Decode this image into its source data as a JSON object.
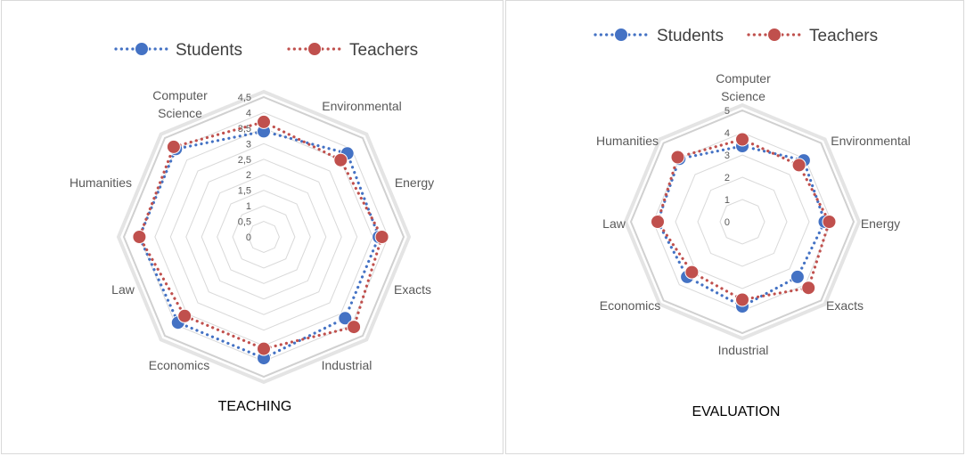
{
  "chart_data": [
    {
      "type": "radar",
      "title": "TEACHING",
      "axes": [
        "Computer Science",
        "Environmental",
        "Energy",
        "Exacts",
        "Industrial",
        "Economics",
        "Law",
        "Humanities"
      ],
      "rmax": 4.5,
      "ticks": [
        "0",
        "0,5",
        "1",
        "1,5",
        "2",
        "2,5",
        "3",
        "3,5",
        "4",
        "4,5"
      ],
      "series": [
        {
          "name": "Students",
          "color": "#4472C4",
          "values": [
            3.4,
            3.8,
            3.7,
            3.7,
            3.9,
            3.9,
            4.0,
            4.0
          ]
        },
        {
          "name": "Teachers",
          "color": "#C0504D",
          "values": [
            3.7,
            3.5,
            3.8,
            4.1,
            3.6,
            3.6,
            4.0,
            4.1
          ]
        }
      ],
      "legend_position": "top",
      "grid": true
    },
    {
      "type": "radar",
      "title": "EVALUATION",
      "axes": [
        "Computer Science",
        "Environmental",
        "Energy",
        "Exacts",
        "Industrial",
        "Economics",
        "Law",
        "Humanities"
      ],
      "rmax": 5,
      "ticks": [
        "0",
        "1",
        "2",
        "3",
        "4",
        "5"
      ],
      "series": [
        {
          "name": "Students",
          "color": "#4472C4",
          "values": [
            3.4,
            3.9,
            3.7,
            3.5,
            3.8,
            3.5,
            3.8,
            4.0
          ]
        },
        {
          "name": "Teachers",
          "color": "#C0504D",
          "values": [
            3.7,
            3.6,
            3.9,
            4.2,
            3.5,
            3.2,
            3.8,
            4.1
          ]
        }
      ],
      "legend_position": "top",
      "grid": true
    }
  ]
}
